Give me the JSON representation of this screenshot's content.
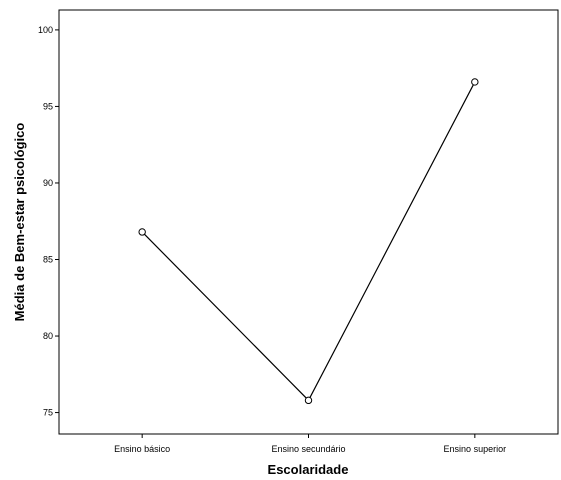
{
  "chart_data": {
    "type": "line",
    "categories": [
      "Ensino básico",
      "Ensino secundário",
      "Ensino superior"
    ],
    "values": [
      86.8,
      75.8,
      96.6
    ],
    "xlabel": "Escolaridade",
    "ylabel": "Média de Bem-estar psicológico",
    "yticks": [
      75,
      80,
      85,
      90,
      95,
      100
    ],
    "ylim": [
      73.6,
      101.3
    ],
    "grid": false,
    "markers": "open-circle",
    "line_color": "#000000"
  }
}
